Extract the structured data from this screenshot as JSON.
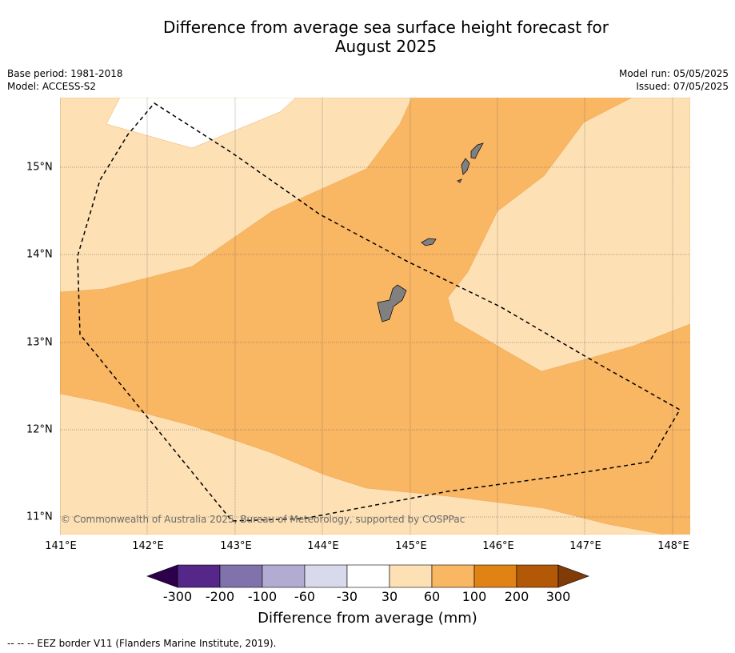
{
  "title_line1": "Difference from average sea surface height forecast for",
  "title_line2": "August 2025",
  "meta": {
    "base_period": "Base period: 1981-2018",
    "model": "Model: ACCESS-S2",
    "model_run": "Model run: 05/05/2025",
    "issued": "Issued: 07/05/2025"
  },
  "map": {
    "lon_labels": [
      "141°E",
      "142°E",
      "143°E",
      "144°E",
      "145°E",
      "146°E",
      "147°E",
      "148°E"
    ],
    "lat_labels": [
      "15°N",
      "14°N",
      "13°N",
      "12°N",
      "11°N"
    ],
    "copyright": "© Commonwealth of Australia 2025, Bureau of Meteorology, supported by COSPPac",
    "colors": {
      "c_-30_30": "#ffffff",
      "c_30_60": "#fde0b4",
      "c_60_100": "#f9b663",
      "land": "#808080"
    }
  },
  "colorbar": {
    "labels": [
      "-300",
      "-200",
      "-100",
      "-60",
      "-30",
      "30",
      "60",
      "100",
      "200",
      "300"
    ],
    "colors": [
      "#2d004b",
      "#542788",
      "#8073ac",
      "#b2abd2",
      "#d8daeb",
      "#ffffff",
      "#fde0b4",
      "#f9b663",
      "#e08214",
      "#b35806",
      "#7f3b08"
    ],
    "title": "Difference from average (mm)"
  },
  "footer": "--  --  -- EEZ border V11 (Flanders Marine Institute, 2019)."
}
